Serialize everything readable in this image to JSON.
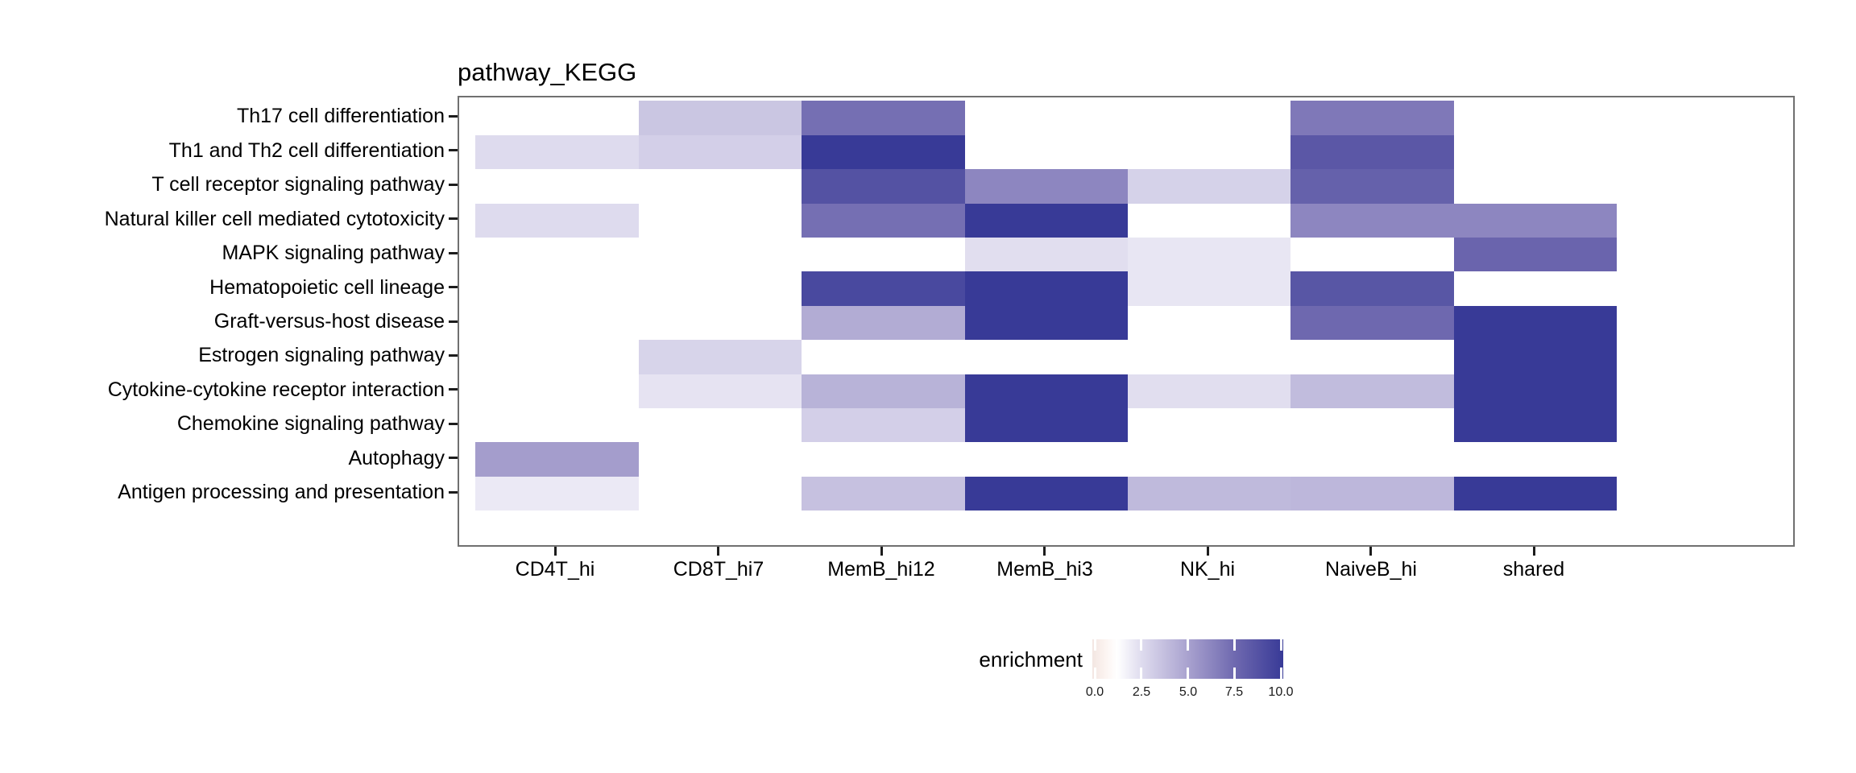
{
  "title": "pathway_KEGG",
  "chart_data": {
    "type": "heatmap",
    "title": "pathway_KEGG",
    "x_categories": [
      "CD4T_hi",
      "CD8T_hi7",
      "MemB_hi12",
      "MemB_hi3",
      "NK_hi",
      "NaiveB_hi",
      "shared"
    ],
    "y_categories": [
      "Th17 cell differentiation",
      "Th1 and Th2 cell differentiation",
      "T cell receptor signaling pathway",
      "Natural killer cell mediated cytotoxicity",
      "MAPK signaling pathway",
      "Hematopoietic cell lineage",
      "Graft-versus-host disease",
      "Estrogen signaling pathway",
      "Cytokine-cytokine receptor interaction",
      "Chemokine signaling pathway",
      "Autophagy",
      "Antigen processing and presentation"
    ],
    "series": [
      {
        "name": "Th17 cell differentiation",
        "values": [
          null,
          3.5,
          7.2,
          null,
          null,
          6.8,
          null
        ]
      },
      {
        "name": "Th1 and Th2 cell differentiation",
        "values": [
          2.6,
          3.1,
          10,
          null,
          null,
          8.4,
          null
        ]
      },
      {
        "name": "T cell receptor signaling pathway",
        "values": [
          null,
          null,
          8.7,
          6.2,
          3.0,
          7.9,
          null
        ]
      },
      {
        "name": "Natural killer cell mediated cytotoxicity",
        "values": [
          2.6,
          null,
          7.2,
          10,
          null,
          6.2,
          6.2
        ]
      },
      {
        "name": "MAPK signaling pathway",
        "values": [
          null,
          null,
          null,
          2.5,
          2.2,
          null,
          7.7
        ]
      },
      {
        "name": "Hematopoietic cell lineage",
        "values": [
          null,
          null,
          9.2,
          10,
          2.2,
          8.5,
          null
        ]
      },
      {
        "name": "Graft-versus-host disease",
        "values": [
          null,
          null,
          4.6,
          10,
          null,
          7.5,
          10
        ]
      },
      {
        "name": "Estrogen signaling pathway",
        "values": [
          null,
          2.9,
          null,
          null,
          null,
          null,
          10
        ]
      },
      {
        "name": "Cytokine-cytokine receptor interaction",
        "values": [
          null,
          2.3,
          4.3,
          10,
          2.5,
          3.9,
          10
        ]
      },
      {
        "name": "Chemokine signaling pathway",
        "values": [
          null,
          null,
          3.1,
          10,
          null,
          null,
          10
        ]
      },
      {
        "name": "Autophagy",
        "values": [
          5.2,
          null,
          null,
          null,
          null,
          null,
          null
        ]
      },
      {
        "name": "Antigen processing and presentation",
        "values": [
          2.1,
          null,
          3.7,
          10,
          4.0,
          4.1,
          10
        ]
      }
    ],
    "legend": {
      "title": "enrichment",
      "position": "bottom",
      "min": 0,
      "max": 10,
      "tick_values": [
        0,
        2.5,
        5,
        7.5,
        10
      ],
      "tick_labels": [
        "0.0",
        "2.5",
        "5.0",
        "7.5",
        "10.0"
      ]
    },
    "colorscale": [
      [
        0,
        "#f3e6e2"
      ],
      [
        0.07,
        "#fcf4f1"
      ],
      [
        0.13,
        "#ffffff"
      ],
      [
        0.26,
        "#dedbee"
      ],
      [
        0.5,
        "#a9a2cf"
      ],
      [
        0.75,
        "#6e68af"
      ],
      [
        1,
        "#383a97"
      ]
    ],
    "empty_color": "#ffffff",
    "grid": false
  }
}
